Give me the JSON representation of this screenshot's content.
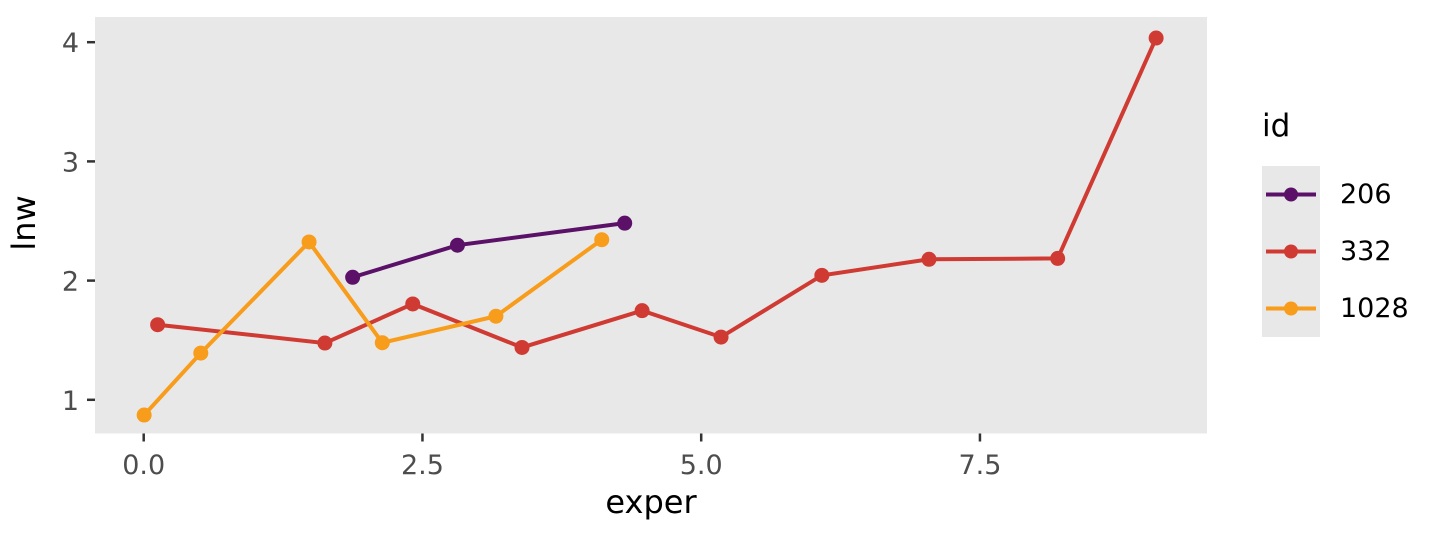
{
  "chart_data": {
    "type": "line",
    "title": "",
    "xlabel": "exper",
    "ylabel": "lnw",
    "grid": "off",
    "xlim": [
      -0.45,
      9.53
    ],
    "ylim": [
      0.71,
      4.21
    ],
    "x_ticks": {
      "values": [
        0.0,
        2.5,
        5.0,
        7.5
      ],
      "labels": [
        "0.0",
        "2.5",
        "5.0",
        "7.5"
      ]
    },
    "y_ticks": {
      "values": [
        1,
        2,
        3,
        4
      ],
      "labels": [
        "1",
        "2",
        "3",
        "4"
      ]
    },
    "legend": {
      "title": "id",
      "position": "right"
    },
    "series": [
      {
        "name": "206",
        "color": "#5C1168",
        "x": [
          1.874,
          2.814,
          4.314
        ],
        "y": [
          2.028,
          2.297,
          2.482
        ]
      },
      {
        "name": "332",
        "color": "#CF3B33",
        "x": [
          0.125,
          1.625,
          2.413,
          3.393,
          4.47,
          5.178,
          6.082,
          7.043,
          8.197,
          9.08
        ],
        "y": [
          1.63,
          1.476,
          1.804,
          1.439,
          1.748,
          1.526,
          2.044,
          2.179,
          2.186,
          4.035
        ]
      },
      {
        "name": "1028",
        "color": "#F89C1B",
        "x": [
          0.004,
          0.512,
          1.483,
          2.14,
          3.159,
          4.108
        ],
        "y": [
          0.872,
          1.392,
          2.324,
          1.479,
          1.701,
          2.343
        ]
      }
    ]
  },
  "colors": {
    "panel_background": "#E8E8E8",
    "figure_background": "#FFFFFF",
    "tick_label": "#4D4D4D",
    "tick_mark": "#333333",
    "axis_title": "#000000",
    "legend_key_background": "#E8E8E8"
  }
}
